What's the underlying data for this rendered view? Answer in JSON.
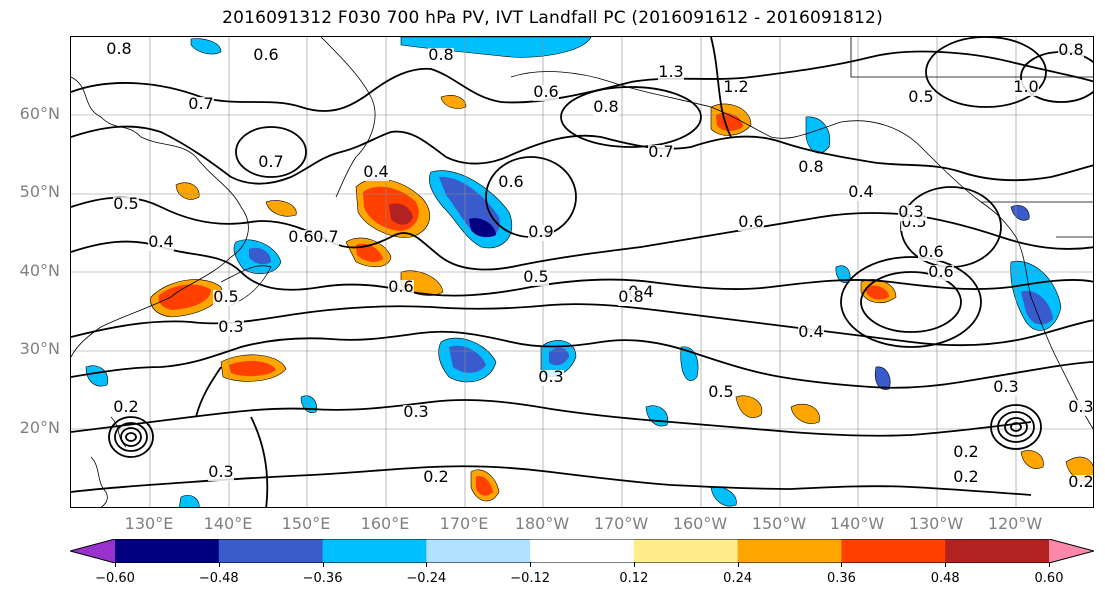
{
  "title": "2016091312 F030 700 hPa PV, IVT Landfall PC (2016091612 - 2016091812)",
  "lat_labels": [
    "60°N",
    "50°N",
    "40°N",
    "30°N",
    "20°N"
  ],
  "lon_labels": [
    "130°E",
    "140°E",
    "150°E",
    "160°E",
    "170°E",
    "180°W",
    "170°W",
    "160°W",
    "150°W",
    "140°W",
    "130°W",
    "120°W"
  ],
  "colorbar": {
    "ticks": [
      "−0.60",
      "−0.48",
      "−0.36",
      "−0.24",
      "−0.12",
      "0.12",
      "0.24",
      "0.36",
      "0.48",
      "0.60"
    ],
    "colors": [
      "#9932cc",
      "#000080",
      "#3a5bcc",
      "#00bfff",
      "#b0e2ff",
      "#ffffff",
      "#ffec8b",
      "#ffa500",
      "#ff4000",
      "#b22222",
      "#ff88aa"
    ]
  },
  "contour_labels": [
    "0.8",
    "0.6",
    "0.8",
    "0.6",
    "0.8",
    "1.3",
    "1.2",
    "0.5",
    "1.0",
    "0.7",
    "0.7",
    "0.7",
    "0.4",
    "0.8",
    "0.4",
    "0.5",
    "0.6",
    "0.9",
    "0.7",
    "0.6",
    "0.5",
    "0.3",
    "0.4",
    "0.6",
    "0.5",
    "0.6",
    "0.6",
    "0.5",
    "0.4",
    "0.8",
    "0.4",
    "0.3",
    "0.3",
    "0.3",
    "0.3",
    "0.5",
    "0.2",
    "0.3",
    "0.2",
    "0.2",
    "0.2",
    "0.3",
    "0.2",
    "0.6",
    "0.8"
  ]
}
